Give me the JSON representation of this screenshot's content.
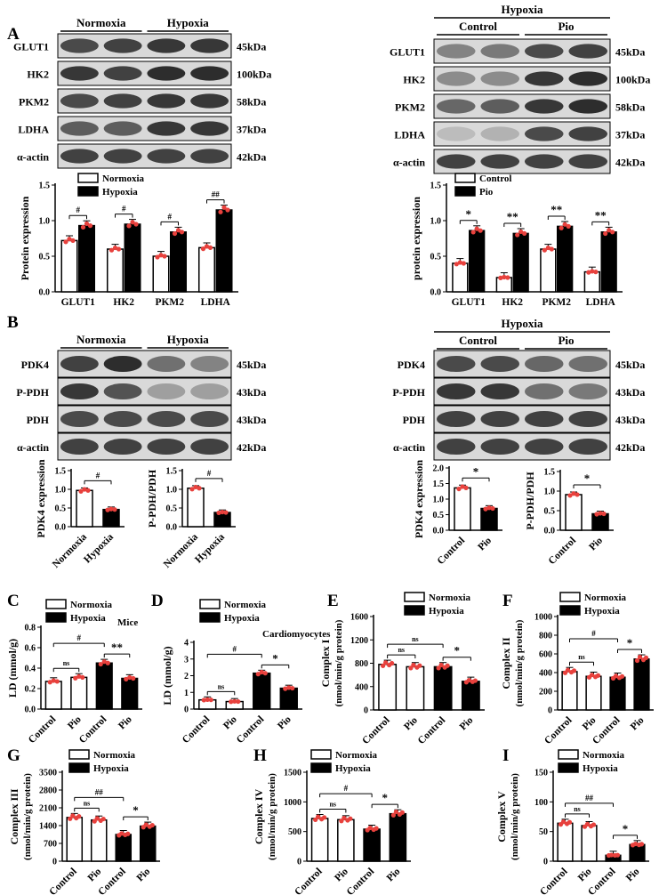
{
  "panel_letters": [
    "A",
    "B",
    "C",
    "D",
    "E",
    "F",
    "G",
    "H",
    "I"
  ],
  "colors": {
    "black": "#000000",
    "white": "#ffffff",
    "red": "#e8413d",
    "grid": "#000000"
  },
  "blots": {
    "A_left": {
      "group_headers": [
        "Normoxia",
        "Hypoxia"
      ],
      "labels": [
        "GLUT1",
        "HK2",
        "PKM2",
        "LDHA",
        "α-actin"
      ],
      "weights": [
        "45kDa",
        "100kDa",
        "58kDa",
        "37kDa",
        "42kDa"
      ]
    },
    "A_right": {
      "title": "Hypoxia",
      "group_headers": [
        "Control",
        "Pio"
      ],
      "labels": [
        "GLUT1",
        "HK2",
        "PKM2",
        "LDHA",
        "α-actin"
      ],
      "weights": [
        "45kDa",
        "100kDa",
        "58kDa",
        "37kDa",
        "42kDa"
      ]
    },
    "B_left": {
      "group_headers": [
        "Normoxia",
        "Hypoxia"
      ],
      "labels": [
        "PDK4",
        "P-PDH",
        "PDH",
        "α-actin"
      ],
      "weights": [
        "45kDa",
        "43kDa",
        "43kDa",
        "42kDa"
      ]
    },
    "B_right": {
      "title": "Hypoxia",
      "group_headers": [
        "Control",
        "Pio"
      ],
      "labels": [
        "PDK4",
        "P-PDH",
        "PDH",
        "α-actin"
      ],
      "weights": [
        "45kDa",
        "43kDa",
        "43kDa",
        "42kDa"
      ]
    }
  },
  "chart_data": [
    {
      "id": "A_left",
      "type": "bar",
      "ylabel": "Protein expression",
      "ylim": [
        0,
        1.5
      ],
      "yticks": [
        "0.0",
        "0.5",
        "1.0",
        "1.5"
      ],
      "categories": [
        "GLUT1",
        "HK2",
        "PKM2",
        "LDHA"
      ],
      "legend": [
        "Normoxia",
        "Hypoxia"
      ],
      "series": [
        {
          "name": "Normoxia",
          "values": [
            0.72,
            0.6,
            0.5,
            0.62
          ]
        },
        {
          "name": "Hypoxia",
          "values": [
            0.93,
            0.95,
            0.84,
            1.15
          ]
        }
      ],
      "significance": [
        "#",
        "#",
        "#",
        "##"
      ]
    },
    {
      "id": "A_right",
      "type": "bar",
      "ylabel": "protein expression",
      "ylim": [
        0,
        1.5
      ],
      "yticks": [
        "0.0",
        "0.5",
        "1.0",
        "1.5"
      ],
      "categories": [
        "GLUT1",
        "HK2",
        "PKM2",
        "LDHA"
      ],
      "legend": [
        "Control",
        "Pio"
      ],
      "series": [
        {
          "name": "Control",
          "values": [
            0.4,
            0.2,
            0.6,
            0.28
          ]
        },
        {
          "name": "Pio",
          "values": [
            0.86,
            0.82,
            0.92,
            0.84
          ]
        }
      ],
      "significance": [
        "*",
        "**",
        "**",
        "**"
      ]
    },
    {
      "id": "B1",
      "type": "bar",
      "ylabel": "PDK4 expression",
      "ylim": [
        0,
        1.5
      ],
      "yticks": [
        "0.0",
        "0.5",
        "1.0",
        "1.5"
      ],
      "categories": [
        "Normoxia",
        "Hypoxia"
      ],
      "values": [
        0.97,
        0.46
      ],
      "fills": [
        "white",
        "black"
      ],
      "significance": "#"
    },
    {
      "id": "B2",
      "type": "bar",
      "ylabel": "P-PDH/PDH",
      "ylim": [
        0,
        1.5
      ],
      "yticks": [
        "0.0",
        "0.5",
        "1.0",
        "1.5"
      ],
      "categories": [
        "Normoxia",
        "Hypoxia"
      ],
      "values": [
        1.03,
        0.38
      ],
      "fills": [
        "white",
        "black"
      ],
      "significance": "#"
    },
    {
      "id": "B3",
      "type": "bar",
      "ylabel": "PDK4 expression",
      "ylim": [
        0,
        2.0
      ],
      "yticks": [
        "0.0",
        "0.5",
        "1.0",
        "1.5",
        "2.0"
      ],
      "categories": [
        "Control",
        "Pio"
      ],
      "values": [
        1.36,
        0.7
      ],
      "fills": [
        "white",
        "black"
      ],
      "significance": "*"
    },
    {
      "id": "B4",
      "type": "bar",
      "ylabel": "P-PDH/PDH",
      "ylim": [
        0,
        1.5
      ],
      "yticks": [
        "0.0",
        "0.5",
        "1.0",
        "1.5"
      ],
      "categories": [
        "Control",
        "Pio"
      ],
      "values": [
        0.91,
        0.42
      ],
      "fills": [
        "white",
        "black"
      ],
      "significance": "*"
    },
    {
      "id": "C",
      "type": "bar",
      "ylabel": "LD (mmol/g)",
      "note": "Mice",
      "ylim": [
        0,
        0.8
      ],
      "yticks": [
        "0.0",
        "0.2",
        "0.4",
        "0.6",
        "0.8"
      ],
      "categories": [
        "Control",
        "Pio",
        "Control",
        "Pio"
      ],
      "values": [
        0.27,
        0.31,
        0.45,
        0.3
      ],
      "fills": [
        "white",
        "white",
        "black",
        "black"
      ],
      "legend": [
        "Normoxia",
        "Hypoxia"
      ],
      "comparisons": [
        "ns",
        "#",
        "**"
      ]
    },
    {
      "id": "D",
      "type": "bar",
      "ylabel": "LD (mmol/g)",
      "note": "Cardiomyocytes",
      "ylim": [
        0,
        4
      ],
      "yticks": [
        "0",
        "1",
        "2",
        "3",
        "4"
      ],
      "categories": [
        "Control",
        "Pio",
        "Control",
        "Pio"
      ],
      "values": [
        0.55,
        0.45,
        2.15,
        1.25
      ],
      "fills": [
        "white",
        "white",
        "black",
        "black"
      ],
      "legend": [
        "Normoxia",
        "Hypoxia"
      ],
      "comparisons": [
        "ns",
        "#",
        "*"
      ]
    },
    {
      "id": "E",
      "type": "bar",
      "ylabel": "Complex I",
      "ylabel2": "(nmol/min/g protein)",
      "ylim": [
        0,
        1600
      ],
      "yticks": [
        "0",
        "400",
        "800",
        "1200",
        "1600"
      ],
      "categories": [
        "Control",
        "Pio",
        "Control",
        "Pio"
      ],
      "values": [
        780,
        740,
        740,
        490
      ],
      "fills": [
        "white",
        "white",
        "black",
        "black"
      ],
      "legend": [
        "Normoxia",
        "Hypoxia"
      ],
      "comparisons": [
        "ns",
        "ns",
        "*"
      ]
    },
    {
      "id": "F",
      "type": "bar",
      "ylabel": "Complex II",
      "ylabel2": "(nmol/min/g protein)",
      "ylim": [
        0,
        1000
      ],
      "yticks": [
        "0",
        "200",
        "400",
        "600",
        "800",
        "1000"
      ],
      "categories": [
        "Control",
        "Pio",
        "Control",
        "Pio"
      ],
      "values": [
        410,
        360,
        350,
        545
      ],
      "fills": [
        "white",
        "white",
        "black",
        "black"
      ],
      "legend": [
        "Normoxia",
        "Hypoxia"
      ],
      "comparisons": [
        "ns",
        "#",
        "*"
      ]
    },
    {
      "id": "G",
      "type": "bar",
      "ylabel": "Complex III",
      "ylabel2": "(nmol/min/g protein)",
      "ylim": [
        0,
        3500
      ],
      "yticks": [
        "0",
        "700",
        "1400",
        "2100",
        "2800",
        "3500"
      ],
      "categories": [
        "Control",
        "Pio",
        "Control",
        "Pio"
      ],
      "values": [
        1720,
        1620,
        1050,
        1380
      ],
      "fills": [
        "white",
        "white",
        "black",
        "black"
      ],
      "legend": [
        "Normoxia",
        "Hypoxia"
      ],
      "comparisons": [
        "ns",
        "##",
        "*"
      ]
    },
    {
      "id": "H",
      "type": "bar",
      "ylabel": "Complex IV",
      "ylabel2": "(nmol/min/g protein)",
      "ylim": [
        0,
        1500
      ],
      "yticks": [
        "0",
        "500",
        "1000",
        "1500"
      ],
      "categories": [
        "Control",
        "Pio",
        "Control",
        "Pio"
      ],
      "values": [
        720,
        700,
        540,
        800
      ],
      "fills": [
        "white",
        "white",
        "black",
        "black"
      ],
      "legend": [
        "Normoxia",
        "Hypoxia"
      ],
      "comparisons": [
        "ns",
        "#",
        "*"
      ]
    },
    {
      "id": "I",
      "type": "bar",
      "ylabel": "Complex V",
      "ylabel2": "(nmol/min/g protein)",
      "ylim": [
        0,
        150
      ],
      "yticks": [
        "0",
        "50",
        "100",
        "150"
      ],
      "categories": [
        "Control",
        "Pio",
        "Control",
        "Pio"
      ],
      "values": [
        64,
        60,
        10,
        28
      ],
      "fills": [
        "white",
        "white",
        "black",
        "black"
      ],
      "legend": [
        "Normoxia",
        "Hypoxia"
      ],
      "comparisons": [
        "ns",
        "##",
        "*"
      ]
    }
  ]
}
